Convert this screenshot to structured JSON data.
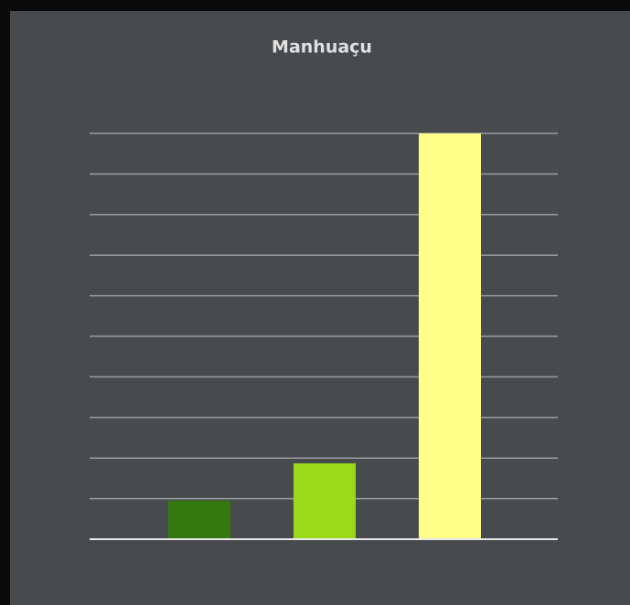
{
  "chart_data": {
    "type": "bar",
    "title": "Manhuaçu",
    "categories": [
      null,
      null,
      null
    ],
    "values": [
      0.95,
      1.87,
      10
    ],
    "colors": [
      "#33780f",
      "#9bd81a",
      "#ffff8a"
    ],
    "ylim": [
      0,
      10
    ],
    "yticks": [
      0,
      1,
      2,
      3,
      4,
      5,
      6,
      7,
      8,
      9,
      10
    ],
    "grid": true
  }
}
